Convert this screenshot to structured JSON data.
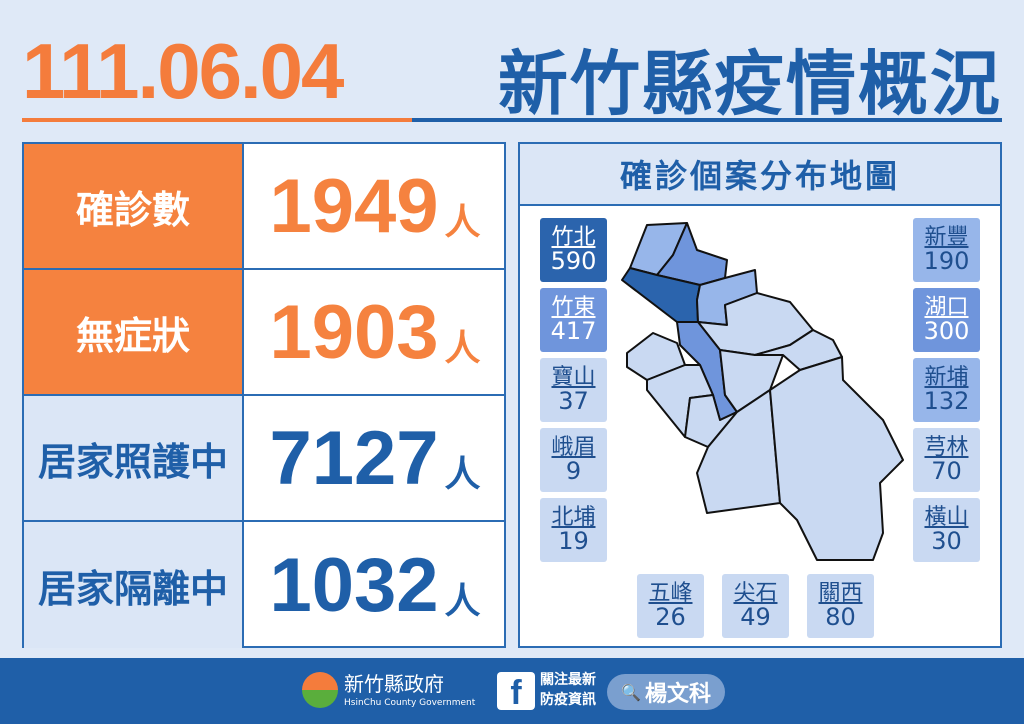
{
  "header": {
    "date": "111.06.04",
    "title": "新竹縣疫情概況"
  },
  "stats": [
    {
      "label": "確診數",
      "value": "1949",
      "unit": "人",
      "style": "orange"
    },
    {
      "label": "無症狀",
      "value": "1903",
      "unit": "人",
      "style": "orange"
    },
    {
      "label": "居家照護中",
      "value": "7127",
      "unit": "人",
      "style": "blue"
    },
    {
      "label": "居家隔離中",
      "value": "1032",
      "unit": "人",
      "style": "blue"
    }
  ],
  "map": {
    "title": "確診個案分布地圖",
    "levels": {
      "dark": "#2b64ad",
      "mid": "#6f95dc",
      "light": "#97b6ea",
      "pale": "#c9d9f2"
    },
    "townships": [
      {
        "name": "竹北",
        "count": "590",
        "level": "dark"
      },
      {
        "name": "竹東",
        "count": "417",
        "level": "mid"
      },
      {
        "name": "寶山",
        "count": "37",
        "level": "pale"
      },
      {
        "name": "峨眉",
        "count": "9",
        "level": "pale"
      },
      {
        "name": "北埔",
        "count": "19",
        "level": "pale"
      },
      {
        "name": "新豐",
        "count": "190",
        "level": "light"
      },
      {
        "name": "湖口",
        "count": "300",
        "level": "mid"
      },
      {
        "name": "新埔",
        "count": "132",
        "level": "light"
      },
      {
        "name": "芎林",
        "count": "70",
        "level": "pale"
      },
      {
        "name": "橫山",
        "count": "30",
        "level": "pale"
      },
      {
        "name": "五峰",
        "count": "26",
        "level": "pale"
      },
      {
        "name": "尖石",
        "count": "49",
        "level": "pale"
      },
      {
        "name": "關西",
        "count": "80",
        "level": "pale"
      }
    ]
  },
  "footer": {
    "gov_name": "新竹縣政府",
    "gov_name_en": "HsinChu County Government",
    "fb_icon": "f",
    "follow_line1": "關注最新",
    "follow_line2": "防疫資訊",
    "search_icon": "🔍",
    "search_name": "楊文科"
  }
}
